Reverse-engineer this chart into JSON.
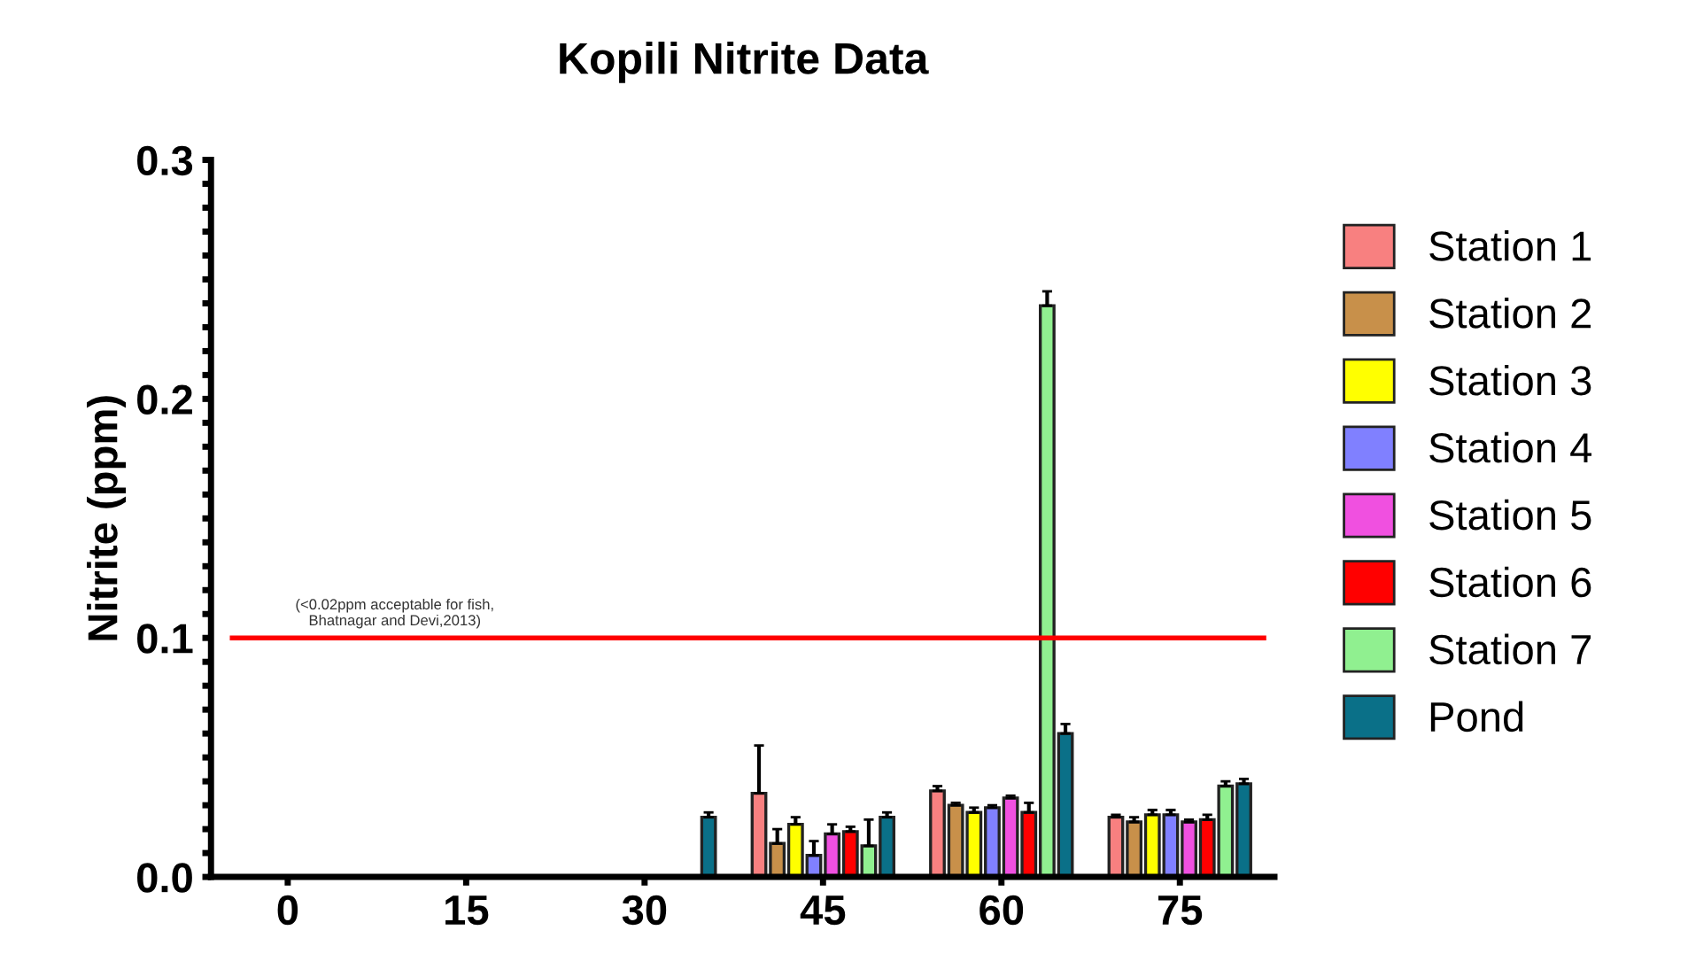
{
  "chart_data": {
    "type": "bar",
    "title": "Kopili Nitrite Data",
    "ylabel": "Nitrite (ppm)",
    "categories": [
      "0",
      "15",
      "30",
      "45",
      "60",
      "75"
    ],
    "series": [
      {
        "name": "Station 1",
        "color": "#f88080",
        "values": [
          0,
          0,
          0,
          0.035,
          0.036,
          0.025
        ],
        "errors": [
          null,
          null,
          null,
          0.02,
          0.002,
          0.001
        ]
      },
      {
        "name": "Station 2",
        "color": "#c8904a",
        "values": [
          0,
          0,
          0,
          0.014,
          0.03,
          0.023
        ],
        "errors": [
          null,
          null,
          null,
          0.006,
          0.001,
          0.002
        ]
      },
      {
        "name": "Station 3",
        "color": "#ffff00",
        "values": [
          0,
          0,
          0,
          0.022,
          0.027,
          0.026
        ],
        "errors": [
          null,
          null,
          null,
          0.003,
          0.002,
          0.002
        ]
      },
      {
        "name": "Station 4",
        "color": "#8080ff",
        "values": [
          0,
          0,
          0,
          0.009,
          0.029,
          0.026
        ],
        "errors": [
          null,
          null,
          null,
          0.006,
          0.001,
          0.002
        ]
      },
      {
        "name": "Station 5",
        "color": "#f050e0",
        "values": [
          0,
          0,
          0,
          0.018,
          0.033,
          0.023
        ],
        "errors": [
          null,
          null,
          null,
          0.004,
          0.001,
          0.001
        ]
      },
      {
        "name": "Station 6",
        "color": "#ff0000",
        "values": [
          0,
          0,
          0,
          0.019,
          0.027,
          0.024
        ],
        "errors": [
          null,
          null,
          null,
          0.002,
          0.004,
          0.002
        ]
      },
      {
        "name": "Station 7",
        "color": "#90f090",
        "values": [
          0,
          0,
          0,
          0.013,
          0.239,
          0.038
        ],
        "errors": [
          null,
          null,
          null,
          0.011,
          0.006,
          0.002
        ]
      },
      {
        "name": "Pond",
        "color": "#0a7088",
        "values": [
          0,
          0,
          0.025,
          0.025,
          0.06,
          0.039
        ],
        "errors": [
          null,
          null,
          0.002,
          0.002,
          0.004,
          0.002
        ]
      }
    ],
    "ylim": [
      0,
      0.3
    ],
    "yticks": [
      {
        "value": 0,
        "label": "0.0"
      },
      {
        "value": 0.01,
        "label": null
      },
      {
        "value": 0.02,
        "label": null
      },
      {
        "value": 0.03,
        "label": null
      },
      {
        "value": 0.04,
        "label": null
      },
      {
        "value": 0.05,
        "label": null
      },
      {
        "value": 0.06,
        "label": null
      },
      {
        "value": 0.07,
        "label": null
      },
      {
        "value": 0.08,
        "label": null
      },
      {
        "value": 0.09,
        "label": null
      },
      {
        "value": 0.1,
        "label": "0.1"
      },
      {
        "value": 0.11,
        "label": null
      },
      {
        "value": 0.12,
        "label": null
      },
      {
        "value": 0.13,
        "label": null
      },
      {
        "value": 0.14,
        "label": null
      },
      {
        "value": 0.15,
        "label": null
      },
      {
        "value": 0.16,
        "label": null
      },
      {
        "value": 0.17,
        "label": null
      },
      {
        "value": 0.18,
        "label": null
      },
      {
        "value": 0.19,
        "label": null
      },
      {
        "value": 0.2,
        "label": "0.2"
      },
      {
        "value": 0.21,
        "label": null
      },
      {
        "value": 0.22,
        "label": null
      },
      {
        "value": 0.23,
        "label": null
      },
      {
        "value": 0.24,
        "label": null
      },
      {
        "value": 0.25,
        "label": null
      },
      {
        "value": 0.26,
        "label": null
      },
      {
        "value": 0.27,
        "label": null
      },
      {
        "value": 0.28,
        "label": null
      },
      {
        "value": 0.29,
        "label": null
      },
      {
        "value": 0.3,
        "label": "0.3"
      }
    ],
    "ref_lines": [
      {
        "axis": "y",
        "value": 0.1,
        "label": "(<0.02ppm acceptable for fish,\nBhatnagar and Devi,2013)",
        "color": "#ff0000"
      }
    ],
    "legend": "right",
    "grid": false
  }
}
